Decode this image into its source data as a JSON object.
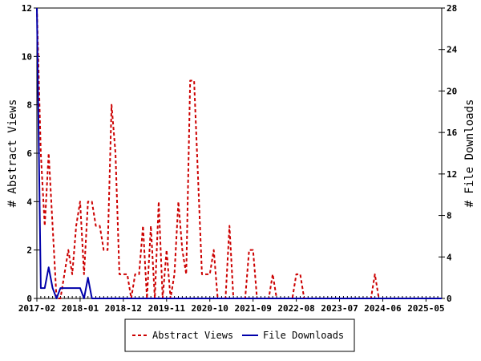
{
  "chart_data": {
    "type": "line",
    "xlabel": "",
    "ylabel_left": "# Abstract Views",
    "ylabel_right": "# File Downloads",
    "x_tick_labels": [
      "2017-02",
      "2018-01",
      "2018-12",
      "2019-11",
      "2020-10",
      "2021-09",
      "2022-08",
      "2023-07",
      "2024-06",
      "2025-05"
    ],
    "ylim_left": [
      0,
      12
    ],
    "ylim_right": [
      0,
      28
    ],
    "y_ticks_left": [
      0,
      2,
      4,
      6,
      8,
      10,
      12
    ],
    "y_ticks_right": [
      0,
      4,
      8,
      12,
      16,
      20,
      24,
      28
    ],
    "n_months": 104,
    "legend_position": "bottom-center",
    "grid": false,
    "series": [
      {
        "name": "Abstract Views",
        "axis": "left",
        "color": "#cc0000",
        "style": "dashed",
        "values": [
          12,
          6,
          3,
          6,
          3,
          0,
          0,
          1,
          2,
          1,
          3,
          4,
          1,
          4,
          4,
          3,
          3,
          2,
          2,
          8,
          6,
          1,
          1,
          1,
          0,
          1,
          1,
          3,
          0,
          3,
          0,
          4,
          0,
          2,
          0,
          1,
          4,
          2,
          1,
          9,
          9,
          5,
          1,
          1,
          1,
          2,
          0,
          0,
          0,
          3,
          0,
          0,
          0,
          0,
          2,
          2,
          0,
          0,
          0,
          0,
          1,
          0,
          0,
          0,
          0,
          0,
          1,
          1,
          0,
          0,
          0,
          0,
          0,
          0,
          0,
          0,
          0,
          0,
          0,
          0,
          0,
          0,
          0,
          0,
          0,
          0,
          1,
          0,
          0,
          0,
          0,
          0,
          0,
          0,
          0,
          0,
          0,
          0,
          0,
          0,
          0,
          0,
          0,
          0
        ]
      },
      {
        "name": "File Downloads",
        "axis": "right",
        "color": "#0000aa",
        "style": "solid",
        "values": [
          28,
          1,
          1,
          3,
          1,
          0,
          1,
          1,
          1,
          1,
          1,
          1,
          0,
          2,
          0,
          0,
          0,
          0,
          0,
          0,
          0,
          0,
          0,
          0,
          0,
          0,
          0,
          0,
          0,
          0,
          0,
          0,
          0,
          0,
          0,
          0,
          0,
          0,
          0,
          0,
          0,
          0,
          0,
          0,
          0,
          0,
          0,
          0,
          0,
          0,
          0,
          0,
          0,
          0,
          0,
          0,
          0,
          0,
          0,
          0,
          0,
          0,
          0,
          0,
          0,
          0,
          0,
          0,
          0,
          0,
          0,
          0,
          0,
          0,
          0,
          0,
          0,
          0,
          0,
          0,
          0,
          0,
          0,
          0,
          0,
          0,
          0,
          0,
          0,
          0,
          0,
          0,
          0,
          0,
          0,
          0,
          0,
          0,
          0,
          0,
          0,
          0,
          0,
          0
        ]
      }
    ]
  }
}
